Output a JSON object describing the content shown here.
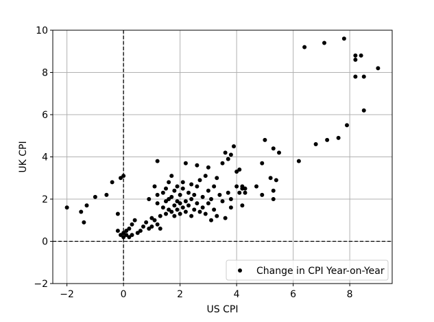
{
  "chart_data": {
    "type": "scatter",
    "title": "",
    "xlabel": "US CPI",
    "ylabel": "UK CPI",
    "xlim": [
      -2.5,
      9.5
    ],
    "ylim": [
      -2,
      10
    ],
    "xticks": [
      -2,
      0,
      2,
      4,
      6,
      8
    ],
    "yticks": [
      -2,
      0,
      2,
      4,
      6,
      8,
      10
    ],
    "grid": true,
    "reference_lines": [
      {
        "orientation": "horizontal",
        "value": 0,
        "style": "dashed"
      },
      {
        "orientation": "vertical",
        "value": 0,
        "style": "dashed"
      }
    ],
    "legend": {
      "position": "lower-right",
      "entries": [
        "Change in CPI Year-on-Year"
      ]
    },
    "colors": {
      "points": "#000000",
      "grid": "#b0b0b0",
      "legend_border": "#cccccc"
    },
    "series": [
      {
        "name": "Change in CPI Year-on-Year",
        "points": [
          [
            -2.0,
            1.6
          ],
          [
            -1.5,
            1.4
          ],
          [
            -1.4,
            0.9
          ],
          [
            -1.3,
            1.7
          ],
          [
            -1.0,
            2.1
          ],
          [
            -0.6,
            2.2
          ],
          [
            -0.4,
            2.8
          ],
          [
            -0.2,
            1.3
          ],
          [
            -0.2,
            0.5
          ],
          [
            -0.1,
            0.3
          ],
          [
            -0.1,
            3.0
          ],
          [
            0.0,
            3.1
          ],
          [
            0.0,
            0.2
          ],
          [
            0.0,
            0.4
          ],
          [
            0.1,
            0.5
          ],
          [
            0.1,
            0.3
          ],
          [
            0.2,
            0.2
          ],
          [
            0.2,
            0.6
          ],
          [
            0.3,
            0.3
          ],
          [
            0.3,
            0.8
          ],
          [
            0.4,
            1.0
          ],
          [
            0.5,
            0.4
          ],
          [
            0.6,
            0.5
          ],
          [
            0.7,
            0.7
          ],
          [
            0.8,
            0.9
          ],
          [
            0.9,
            0.6
          ],
          [
            0.9,
            2.0
          ],
          [
            1.0,
            1.1
          ],
          [
            1.0,
            0.7
          ],
          [
            1.1,
            1.0
          ],
          [
            1.1,
            2.6
          ],
          [
            1.2,
            0.8
          ],
          [
            1.2,
            1.8
          ],
          [
            1.2,
            2.2
          ],
          [
            1.2,
            3.8
          ],
          [
            1.3,
            1.2
          ],
          [
            1.3,
            0.6
          ],
          [
            1.4,
            2.3
          ],
          [
            1.4,
            1.6
          ],
          [
            1.5,
            1.9
          ],
          [
            1.5,
            2.5
          ],
          [
            1.5,
            1.3
          ],
          [
            1.6,
            2.0
          ],
          [
            1.6,
            1.5
          ],
          [
            1.6,
            2.8
          ],
          [
            1.7,
            1.4
          ],
          [
            1.7,
            2.1
          ],
          [
            1.7,
            3.1
          ],
          [
            1.8,
            1.7
          ],
          [
            1.8,
            2.4
          ],
          [
            1.8,
            1.2
          ],
          [
            1.9,
            1.9
          ],
          [
            1.9,
            2.6
          ],
          [
            1.9,
            1.5
          ],
          [
            2.0,
            2.2
          ],
          [
            2.0,
            1.8
          ],
          [
            2.0,
            1.3
          ],
          [
            2.1,
            2.5
          ],
          [
            2.1,
            1.6
          ],
          [
            2.1,
            2.8
          ],
          [
            2.2,
            1.9
          ],
          [
            2.2,
            1.4
          ],
          [
            2.2,
            3.7
          ],
          [
            2.3,
            2.3
          ],
          [
            2.3,
            1.7
          ],
          [
            2.4,
            2.0
          ],
          [
            2.4,
            2.7
          ],
          [
            2.4,
            1.2
          ],
          [
            2.5,
            1.5
          ],
          [
            2.5,
            2.2
          ],
          [
            2.6,
            1.8
          ],
          [
            2.6,
            3.6
          ],
          [
            2.6,
            2.6
          ],
          [
            2.7,
            1.4
          ],
          [
            2.7,
            2.9
          ],
          [
            2.8,
            2.1
          ],
          [
            2.8,
            1.6
          ],
          [
            2.9,
            3.1
          ],
          [
            2.9,
            1.3
          ],
          [
            3.0,
            2.4
          ],
          [
            3.0,
            1.8
          ],
          [
            3.0,
            3.5
          ],
          [
            3.1,
            1.0
          ],
          [
            3.1,
            2.0
          ],
          [
            3.2,
            2.6
          ],
          [
            3.2,
            1.5
          ],
          [
            3.3,
            3.0
          ],
          [
            3.3,
            1.2
          ],
          [
            3.4,
            2.2
          ],
          [
            3.5,
            1.9
          ],
          [
            3.5,
            3.7
          ],
          [
            3.6,
            4.2
          ],
          [
            3.6,
            1.1
          ],
          [
            3.7,
            2.3
          ],
          [
            3.7,
            3.9
          ],
          [
            3.8,
            1.6
          ],
          [
            3.8,
            4.1
          ],
          [
            3.8,
            2.0
          ],
          [
            3.9,
            4.5
          ],
          [
            4.0,
            2.6
          ],
          [
            4.0,
            3.3
          ],
          [
            4.1,
            2.3
          ],
          [
            4.1,
            3.4
          ],
          [
            4.2,
            2.6
          ],
          [
            4.2,
            1.7
          ],
          [
            4.2,
            2.5
          ],
          [
            4.3,
            2.3
          ],
          [
            4.3,
            2.5
          ],
          [
            4.7,
            2.6
          ],
          [
            4.9,
            2.2
          ],
          [
            4.9,
            3.7
          ],
          [
            5.0,
            4.8
          ],
          [
            5.2,
            3.0
          ],
          [
            5.3,
            2.0
          ],
          [
            5.3,
            2.4
          ],
          [
            5.3,
            4.4
          ],
          [
            5.4,
            2.9
          ],
          [
            5.5,
            4.2
          ],
          [
            6.2,
            3.8
          ],
          [
            6.4,
            9.2
          ],
          [
            6.8,
            4.6
          ],
          [
            7.1,
            9.4
          ],
          [
            7.2,
            4.8
          ],
          [
            7.6,
            4.9
          ],
          [
            7.8,
            9.6
          ],
          [
            7.9,
            5.5
          ],
          [
            8.2,
            8.6
          ],
          [
            8.2,
            8.8
          ],
          [
            8.2,
            7.8
          ],
          [
            8.4,
            8.8
          ],
          [
            8.5,
            7.8
          ],
          [
            8.5,
            6.2
          ],
          [
            9.0,
            8.2
          ]
        ]
      }
    ]
  }
}
